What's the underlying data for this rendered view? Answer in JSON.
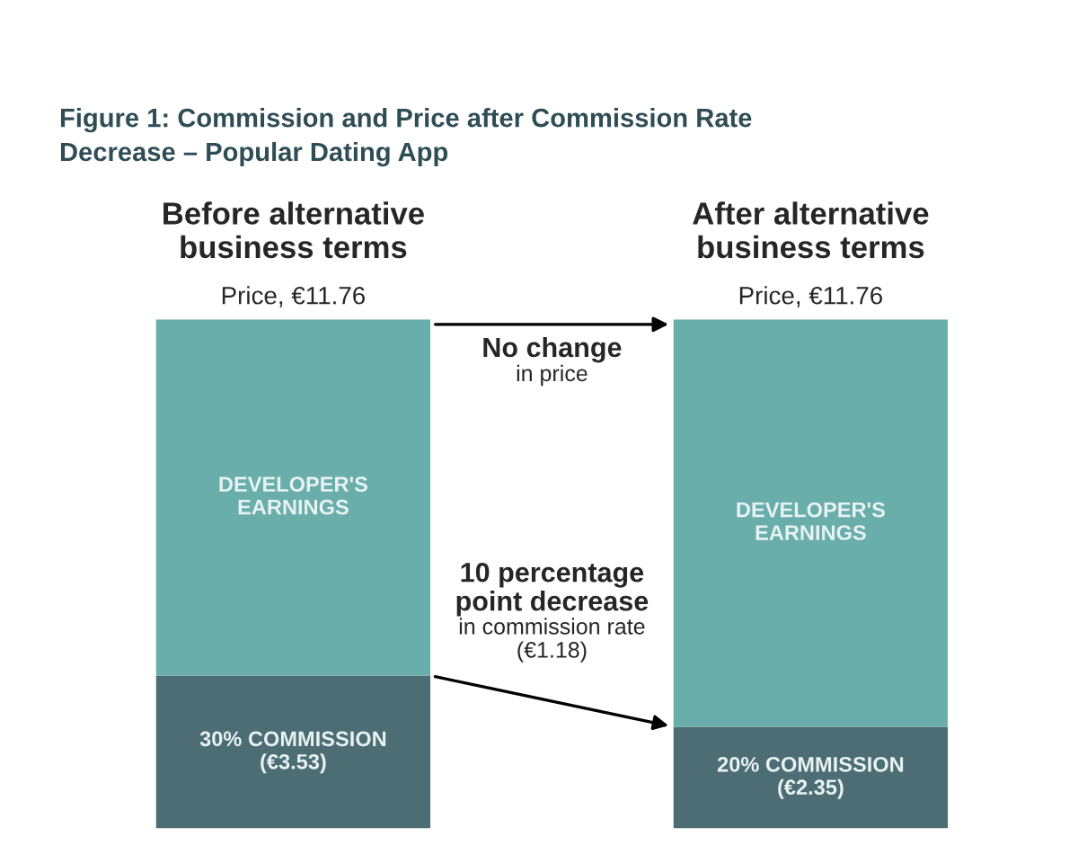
{
  "chart_data": {
    "type": "bar",
    "title": "Figure 1: Commission and Price after Commission Rate\nDecrease – Popular Dating App",
    "categories": [
      "Before alternative\nbusiness terms",
      "After alternative\nbusiness terms"
    ],
    "stacked": true,
    "legend": false,
    "tick_labels": "x",
    "series": [
      {
        "color": "#4d6d74",
        "values": [
          3.53,
          2.35
        ],
        "value_labels": [
          "30% COMMISSION\n(€3.53)",
          "20% COMMISSION\n(€2.35)"
        ]
      },
      {
        "color": "#6aaeac",
        "values": [
          8.23,
          9.41
        ],
        "value_labels": [
          "DEVELOPER'S\nEARNINGS",
          "DEVELOPER'S\nEARNINGS"
        ]
      }
    ],
    "totals": [
      "Price, €11.76",
      "Price, €11.76"
    ],
    "annotations": [
      "No change",
      "in price",
      "10 percentage\npoint decrease",
      "in commission rate\n(€1.18)"
    ]
  }
}
